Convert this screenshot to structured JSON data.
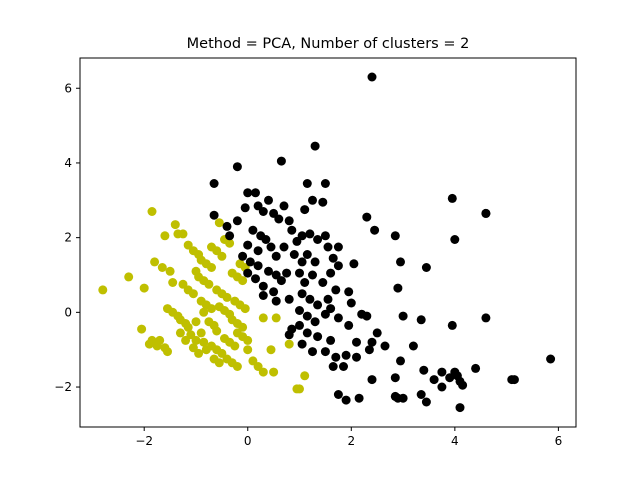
{
  "chart_data": {
    "type": "scatter",
    "title": "Method = PCA, Number of clusters = 2",
    "xlabel": "",
    "ylabel": "",
    "xlim": [
      -3.24,
      6.34
    ],
    "ylim": [
      -3.07,
      6.81
    ],
    "xticks": [
      -2,
      0,
      2,
      4,
      6
    ],
    "yticks": [
      -2,
      0,
      2,
      4,
      6
    ],
    "xtick_labels": [
      "−2",
      "0",
      "2",
      "4",
      "6"
    ],
    "ytick_labels": [
      "−2",
      "0",
      "2",
      "4",
      "6"
    ],
    "grid": false,
    "legend": "none",
    "series": [
      {
        "color": "#bfbf00",
        "points": [
          [
            -2.8,
            0.6
          ],
          [
            -2.3,
            0.95
          ],
          [
            -2.0,
            0.65
          ],
          [
            -2.05,
            -0.45
          ],
          [
            -1.85,
            2.7
          ],
          [
            -1.8,
            1.35
          ],
          [
            -1.85,
            -0.75
          ],
          [
            -1.75,
            -0.9
          ],
          [
            -1.7,
            -0.75
          ],
          [
            -1.6,
            -0.95
          ],
          [
            -1.55,
            -1.05
          ],
          [
            -1.65,
            1.2
          ],
          [
            -1.5,
            1.1
          ],
          [
            -1.55,
            0.1
          ],
          [
            -1.45,
            0.0
          ],
          [
            -1.35,
            -0.1
          ],
          [
            -1.4,
            2.35
          ],
          [
            -1.35,
            2.1
          ],
          [
            -1.25,
            2.1
          ],
          [
            -1.2,
            -0.3
          ],
          [
            -1.3,
            -0.2
          ],
          [
            -1.15,
            -0.4
          ],
          [
            -1.25,
            0.75
          ],
          [
            -1.15,
            0.6
          ],
          [
            -1.05,
            0.5
          ],
          [
            -1.15,
            1.8
          ],
          [
            -1.05,
            1.65
          ],
          [
            -0.95,
            1.55
          ],
          [
            -1.1,
            -0.6
          ],
          [
            -1.0,
            -0.75
          ],
          [
            -1.05,
            -0.95
          ],
          [
            -0.95,
            -1.1
          ],
          [
            -0.9,
            -0.55
          ],
          [
            -0.85,
            -0.8
          ],
          [
            -0.8,
            -1.0
          ],
          [
            -1.0,
            1.1
          ],
          [
            -0.95,
            0.95
          ],
          [
            -0.85,
            0.85
          ],
          [
            -0.75,
            0.75
          ],
          [
            -0.9,
            1.4
          ],
          [
            -0.8,
            1.3
          ],
          [
            -0.7,
            1.2
          ],
          [
            -0.9,
            0.3
          ],
          [
            -0.8,
            0.2
          ],
          [
            -0.7,
            0.1
          ],
          [
            -0.75,
            -0.25
          ],
          [
            -0.65,
            -0.35
          ],
          [
            -0.6,
            -0.5
          ],
          [
            -0.7,
            -0.9
          ],
          [
            -0.6,
            -1.0
          ],
          [
            -0.5,
            -1.1
          ],
          [
            -0.65,
            -1.25
          ],
          [
            -0.55,
            -1.35
          ],
          [
            -0.7,
            1.75
          ],
          [
            -0.6,
            1.65
          ],
          [
            -0.5,
            1.5
          ],
          [
            -0.6,
            0.6
          ],
          [
            -0.5,
            0.5
          ],
          [
            -0.4,
            0.4
          ],
          [
            -0.55,
            0.15
          ],
          [
            -0.45,
            0.05
          ],
          [
            -0.35,
            -0.05
          ],
          [
            -0.45,
            -0.7
          ],
          [
            -0.35,
            -0.8
          ],
          [
            -0.25,
            -0.9
          ],
          [
            -0.4,
            -1.25
          ],
          [
            -0.3,
            -1.35
          ],
          [
            -0.2,
            -1.45
          ],
          [
            -0.55,
            2.4
          ],
          [
            -0.45,
            1.95
          ],
          [
            -0.35,
            1.85
          ],
          [
            -0.3,
            1.05
          ],
          [
            -0.2,
            0.95
          ],
          [
            -0.1,
            0.85
          ],
          [
            -0.3,
            -0.2
          ],
          [
            -0.2,
            -0.3
          ],
          [
            -0.1,
            -0.4
          ],
          [
            -0.25,
            0.3
          ],
          [
            -0.15,
            0.2
          ],
          [
            -0.05,
            0.1
          ],
          [
            -0.2,
            -0.55
          ],
          [
            -0.1,
            -0.65
          ],
          [
            0.0,
            -0.75
          ],
          [
            0.1,
            -1.3
          ],
          [
            0.2,
            -1.45
          ],
          [
            0.3,
            -1.6
          ],
          [
            0.0,
            -1.0
          ],
          [
            -0.15,
            1.3
          ],
          [
            -0.05,
            1.2
          ],
          [
            0.3,
            -0.15
          ],
          [
            0.45,
            -1.0
          ],
          [
            0.5,
            -1.6
          ],
          [
            0.55,
            -0.15
          ],
          [
            0.8,
            -0.85
          ],
          [
            0.95,
            -2.05
          ],
          [
            1.0,
            -2.05
          ],
          [
            1.1,
            -1.7
          ],
          [
            -1.3,
            -0.55
          ],
          [
            -1.2,
            -0.75
          ],
          [
            -1.0,
            -0.25
          ],
          [
            -0.85,
            0.0
          ],
          [
            -1.45,
            0.8
          ],
          [
            -1.6,
            2.05
          ],
          [
            -1.9,
            -0.85
          ]
        ]
      },
      {
        "color": "#000000",
        "points": [
          [
            2.4,
            6.3
          ],
          [
            1.3,
            4.45
          ],
          [
            0.65,
            4.05
          ],
          [
            -0.2,
            3.9
          ],
          [
            -0.65,
            3.45
          ],
          [
            1.5,
            3.45
          ],
          [
            1.15,
            3.45
          ],
          [
            0.0,
            3.2
          ],
          [
            0.15,
            3.2
          ],
          [
            0.4,
            3.0
          ],
          [
            0.7,
            2.85
          ],
          [
            1.1,
            2.75
          ],
          [
            1.25,
            3.0
          ],
          [
            1.45,
            2.95
          ],
          [
            0.2,
            2.85
          ],
          [
            0.3,
            2.7
          ],
          [
            0.5,
            2.65
          ],
          [
            0.6,
            2.5
          ],
          [
            -0.05,
            2.8
          ],
          [
            -0.2,
            2.45
          ],
          [
            -0.65,
            2.6
          ],
          [
            -0.4,
            2.3
          ],
          [
            -0.35,
            2.05
          ],
          [
            0.1,
            2.2
          ],
          [
            0.25,
            2.05
          ],
          [
            0.35,
            1.95
          ],
          [
            0.8,
            2.45
          ],
          [
            0.85,
            2.2
          ],
          [
            0.95,
            1.9
          ],
          [
            1.05,
            2.05
          ],
          [
            1.2,
            2.1
          ],
          [
            1.35,
            1.95
          ],
          [
            1.5,
            2.05
          ],
          [
            0.0,
            1.8
          ],
          [
            0.2,
            1.65
          ],
          [
            0.45,
            1.75
          ],
          [
            0.55,
            1.5
          ],
          [
            0.7,
            1.75
          ],
          [
            0.9,
            1.55
          ],
          [
            1.05,
            1.35
          ],
          [
            1.15,
            1.55
          ],
          [
            1.3,
            1.35
          ],
          [
            1.55,
            1.75
          ],
          [
            1.65,
            1.45
          ],
          [
            1.75,
            1.75
          ],
          [
            -0.1,
            1.5
          ],
          [
            0.05,
            1.35
          ],
          [
            0.2,
            1.25
          ],
          [
            0.4,
            1.1
          ],
          [
            0.55,
            1.0
          ],
          [
            0.75,
            1.05
          ],
          [
            0.0,
            1.05
          ],
          [
            0.15,
            0.9
          ],
          [
            0.3,
            0.7
          ],
          [
            0.5,
            0.55
          ],
          [
            0.65,
            0.85
          ],
          [
            1.0,
            1.05
          ],
          [
            1.1,
            0.8
          ],
          [
            1.25,
            1.0
          ],
          [
            1.45,
            0.8
          ],
          [
            1.6,
            1.05
          ],
          [
            1.75,
            1.25
          ],
          [
            2.05,
            1.3
          ],
          [
            0.3,
            0.45
          ],
          [
            0.55,
            0.3
          ],
          [
            0.8,
            0.35
          ],
          [
            1.05,
            0.5
          ],
          [
            1.2,
            0.35
          ],
          [
            1.35,
            0.2
          ],
          [
            1.55,
            0.35
          ],
          [
            1.7,
            0.6
          ],
          [
            1.95,
            0.55
          ],
          [
            2.0,
            0.25
          ],
          [
            1.0,
            0.05
          ],
          [
            1.15,
            -0.1
          ],
          [
            1.3,
            -0.25
          ],
          [
            1.5,
            -0.05
          ],
          [
            1.6,
            0.1
          ],
          [
            1.75,
            -0.15
          ],
          [
            0.85,
            -0.45
          ],
          [
            1.0,
            -0.35
          ],
          [
            1.15,
            -0.55
          ],
          [
            1.35,
            -0.65
          ],
          [
            1.6,
            -0.75
          ],
          [
            1.95,
            -0.35
          ],
          [
            2.1,
            -0.8
          ],
          [
            2.3,
            -0.1
          ],
          [
            2.5,
            -0.55
          ],
          [
            0.8,
            -0.6
          ],
          [
            1.05,
            -0.85
          ],
          [
            1.25,
            -1.05
          ],
          [
            1.5,
            -1.05
          ],
          [
            1.7,
            -1.2
          ],
          [
            1.9,
            -1.15
          ],
          [
            2.1,
            -1.2
          ],
          [
            2.4,
            -0.8
          ],
          [
            2.65,
            -0.9
          ],
          [
            2.95,
            -1.3
          ],
          [
            1.65,
            -1.45
          ],
          [
            1.75,
            -2.2
          ],
          [
            1.9,
            -2.35
          ],
          [
            2.15,
            -2.3
          ],
          [
            2.4,
            -1.8
          ],
          [
            2.85,
            -1.75
          ],
          [
            2.85,
            -2.25
          ],
          [
            2.9,
            -2.3
          ],
          [
            3.0,
            -2.3
          ],
          [
            3.35,
            -2.2
          ],
          [
            3.45,
            -2.4
          ],
          [
            3.4,
            -1.55
          ],
          [
            3.6,
            -1.8
          ],
          [
            3.75,
            -1.6
          ],
          [
            3.75,
            -2.0
          ],
          [
            3.9,
            -1.75
          ],
          [
            4.0,
            -1.6
          ],
          [
            4.05,
            -1.7
          ],
          [
            4.1,
            -1.85
          ],
          [
            4.15,
            -1.95
          ],
          [
            4.1,
            -2.55
          ],
          [
            4.4,
            -1.5
          ],
          [
            5.1,
            -1.8
          ],
          [
            5.15,
            -1.8
          ],
          [
            5.85,
            -1.25
          ],
          [
            3.95,
            -0.35
          ],
          [
            4.6,
            -0.15
          ],
          [
            3.0,
            -0.1
          ],
          [
            3.2,
            -0.9
          ],
          [
            3.35,
            -0.2
          ],
          [
            2.9,
            0.65
          ],
          [
            2.95,
            1.35
          ],
          [
            2.85,
            2.05
          ],
          [
            3.45,
            1.2
          ],
          [
            2.3,
            2.55
          ],
          [
            2.45,
            2.2
          ],
          [
            3.95,
            3.05
          ],
          [
            4.0,
            1.95
          ],
          [
            4.6,
            2.65
          ],
          [
            4.6,
            2.65
          ],
          [
            2.35,
            -1.0
          ],
          [
            2.2,
            -0.05
          ],
          [
            1.85,
            -1.45
          ]
        ]
      }
    ]
  }
}
